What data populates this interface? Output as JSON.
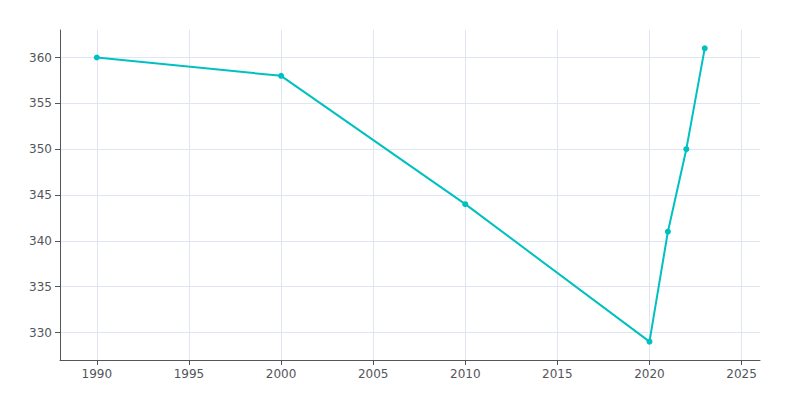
{
  "chart_data": {
    "type": "line",
    "x": [
      1990,
      2000,
      2010,
      2020,
      2021,
      2022,
      2023
    ],
    "values": [
      360,
      358,
      344,
      329,
      341,
      350,
      361
    ],
    "color": "#00C0C0",
    "marker": "circle",
    "xlim": [
      1988,
      2026
    ],
    "ylim": [
      327,
      363
    ],
    "xticks": [
      1990,
      1995,
      2000,
      2005,
      2010,
      2015,
      2020,
      2025
    ],
    "yticks": [
      330,
      335,
      340,
      345,
      350,
      355,
      360
    ],
    "grid": true
  }
}
